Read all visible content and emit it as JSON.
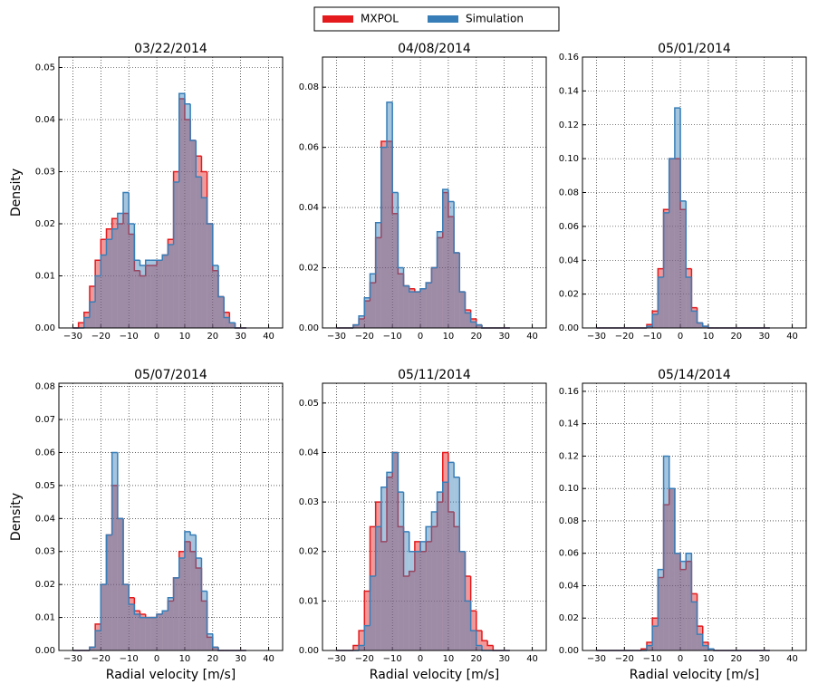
{
  "chart_data": [
    {
      "type": "histogram",
      "title": "03/22/2014",
      "y_label": "Density",
      "bins": [
        -30,
        -28,
        -26,
        -24,
        -22,
        -20,
        -18,
        -16,
        -14,
        -12,
        -10,
        -8,
        -6,
        -4,
        -2,
        0,
        2,
        4,
        6,
        8,
        10,
        12,
        14,
        16,
        18,
        20,
        22,
        24,
        26,
        28,
        30,
        32
      ],
      "series": [
        {
          "name": "MXPOL",
          "color": "#e41a1c",
          "values": [
            0,
            0.001,
            0.003,
            0.008,
            0.013,
            0.017,
            0.019,
            0.021,
            0.02,
            0.022,
            0.018,
            0.011,
            0.01,
            0.012,
            0.012,
            0.013,
            0.014,
            0.017,
            0.03,
            0.044,
            0.04,
            0.036,
            0.033,
            0.03,
            0.02,
            0.011,
            0.006,
            0.003,
            0.001,
            0,
            0
          ]
        },
        {
          "name": "Simulation",
          "color": "#377eb8",
          "values": [
            0,
            0,
            0.002,
            0.005,
            0.01,
            0.014,
            0.017,
            0.019,
            0.022,
            0.026,
            0.02,
            0.013,
            0.012,
            0.013,
            0.013,
            0.013,
            0.014,
            0.016,
            0.028,
            0.045,
            0.043,
            0.036,
            0.029,
            0.025,
            0.02,
            0.012,
            0.006,
            0.002,
            0.001,
            0,
            0
          ]
        }
      ],
      "xlim": [
        -35,
        45
      ],
      "ylim": [
        0,
        0.052
      ],
      "grid": true,
      "xticks": [
        {
          "value": -30,
          "label": "−30"
        },
        {
          "value": -20,
          "label": "−20"
        },
        {
          "value": -10,
          "label": "−10"
        },
        0,
        10,
        20,
        30,
        40
      ],
      "yticks": [
        {
          "value": 0,
          "label": "0.00"
        },
        {
          "value": 0.01,
          "label": "0.01"
        },
        {
          "value": 0.02,
          "label": "0.02"
        },
        {
          "value": 0.03,
          "label": "0.03"
        },
        {
          "value": 0.04,
          "label": "0.04"
        },
        {
          "value": 0.05,
          "label": "0.05"
        }
      ]
    },
    {
      "type": "histogram",
      "title": "04/08/2014",
      "bins": [
        -30,
        -28,
        -26,
        -24,
        -22,
        -20,
        -18,
        -16,
        -14,
        -12,
        -10,
        -8,
        -6,
        -4,
        -2,
        0,
        2,
        4,
        6,
        8,
        10,
        12,
        14,
        16,
        18,
        20,
        22,
        24,
        26,
        28,
        30,
        32
      ],
      "series": [
        {
          "name": "MXPOL",
          "color": "#e41a1c",
          "values": [
            0,
            0,
            0,
            0.001,
            0.003,
            0.009,
            0.015,
            0.03,
            0.062,
            0.062,
            0.038,
            0.018,
            0.014,
            0.013,
            0.012,
            0.013,
            0.015,
            0.02,
            0.03,
            0.045,
            0.037,
            0.025,
            0.012,
            0.006,
            0.003,
            0.001,
            0,
            0,
            0,
            0,
            0
          ]
        },
        {
          "name": "Simulation",
          "color": "#377eb8",
          "values": [
            0,
            0,
            0,
            0.001,
            0.004,
            0.01,
            0.018,
            0.035,
            0.06,
            0.075,
            0.045,
            0.02,
            0.014,
            0.012,
            0.012,
            0.013,
            0.015,
            0.02,
            0.032,
            0.046,
            0.042,
            0.025,
            0.012,
            0.005,
            0.002,
            0.001,
            0,
            0,
            0,
            0,
            0
          ]
        }
      ],
      "xlim": [
        -35,
        45
      ],
      "ylim": [
        0,
        0.09
      ],
      "grid": true,
      "xticks": [
        {
          "value": -30,
          "label": "−30"
        },
        {
          "value": -20,
          "label": "−20"
        },
        {
          "value": -10,
          "label": "−10"
        },
        0,
        10,
        20,
        30,
        40
      ],
      "yticks": [
        {
          "value": 0,
          "label": "0.00"
        },
        {
          "value": 0.02,
          "label": "0.02"
        },
        {
          "value": 0.04,
          "label": "0.04"
        },
        {
          "value": 0.06,
          "label": "0.06"
        },
        {
          "value": 0.08,
          "label": "0.08"
        }
      ]
    },
    {
      "type": "histogram",
      "title": "05/01/2014",
      "bins": [
        -30,
        -28,
        -26,
        -24,
        -22,
        -20,
        -18,
        -16,
        -14,
        -12,
        -10,
        -8,
        -6,
        -4,
        -2,
        0,
        2,
        4,
        6,
        8,
        10,
        12,
        14,
        16,
        18,
        20,
        22,
        24,
        26,
        28,
        30,
        32
      ],
      "series": [
        {
          "name": "MXPOL",
          "color": "#e41a1c",
          "values": [
            0,
            0,
            0,
            0,
            0,
            0,
            0,
            0,
            0,
            0.002,
            0.01,
            0.035,
            0.07,
            0.1,
            0.1,
            0.07,
            0.035,
            0.012,
            0.003,
            0.001,
            0,
            0,
            0,
            0,
            0,
            0,
            0,
            0,
            0,
            0,
            0
          ]
        },
        {
          "name": "Simulation",
          "color": "#377eb8",
          "values": [
            0,
            0,
            0,
            0,
            0,
            0,
            0,
            0,
            0,
            0.001,
            0.008,
            0.03,
            0.068,
            0.1,
            0.13,
            0.075,
            0.03,
            0.01,
            0.003,
            0.001,
            0,
            0,
            0,
            0,
            0,
            0,
            0,
            0,
            0,
            0,
            0
          ]
        }
      ],
      "xlim": [
        -35,
        45
      ],
      "ylim": [
        0,
        0.16
      ],
      "grid": true,
      "xticks": [
        {
          "value": -30,
          "label": "−30"
        },
        {
          "value": -20,
          "label": "−20"
        },
        {
          "value": -10,
          "label": "−10"
        },
        0,
        10,
        20,
        30,
        40
      ],
      "yticks": [
        {
          "value": 0,
          "label": "0.00"
        },
        {
          "value": 0.02,
          "label": "0.02"
        },
        {
          "value": 0.04,
          "label": "0.04"
        },
        {
          "value": 0.06,
          "label": "0.06"
        },
        {
          "value": 0.08,
          "label": "0.08"
        },
        {
          "value": 0.1,
          "label": "0.10"
        },
        {
          "value": 0.12,
          "label": "0.12"
        },
        {
          "value": 0.14,
          "label": "0.14"
        },
        {
          "value": 0.16,
          "label": "0.16"
        }
      ]
    },
    {
      "type": "histogram",
      "title": "05/07/2014",
      "y_label": "Density",
      "x_label": "Radial velocity [m/s]",
      "bins": [
        -30,
        -28,
        -26,
        -24,
        -22,
        -20,
        -18,
        -16,
        -14,
        -12,
        -10,
        -8,
        -6,
        -4,
        -2,
        0,
        2,
        4,
        6,
        8,
        10,
        12,
        14,
        16,
        18,
        20,
        22,
        24,
        26,
        28,
        30,
        32
      ],
      "series": [
        {
          "name": "MXPOL",
          "color": "#e41a1c",
          "values": [
            0,
            0,
            0,
            0.001,
            0.008,
            0.02,
            0.035,
            0.05,
            0.04,
            0.02,
            0.016,
            0.012,
            0.011,
            0.01,
            0.01,
            0.011,
            0.012,
            0.015,
            0.022,
            0.03,
            0.033,
            0.03,
            0.025,
            0.015,
            0.004,
            0.001,
            0,
            0,
            0,
            0,
            0
          ]
        },
        {
          "name": "Simulation",
          "color": "#377eb8",
          "values": [
            0,
            0,
            0,
            0.001,
            0.006,
            0.02,
            0.035,
            0.06,
            0.04,
            0.02,
            0.014,
            0.011,
            0.01,
            0.01,
            0.01,
            0.011,
            0.012,
            0.016,
            0.022,
            0.028,
            0.036,
            0.035,
            0.028,
            0.018,
            0.005,
            0.001,
            0,
            0,
            0,
            0,
            0
          ]
        }
      ],
      "xlim": [
        -35,
        45
      ],
      "ylim": [
        0,
        0.081
      ],
      "grid": true,
      "xticks": [
        {
          "value": -30,
          "label": "−30"
        },
        {
          "value": -20,
          "label": "−20"
        },
        {
          "value": -10,
          "label": "−10"
        },
        0,
        10,
        20,
        30,
        40
      ],
      "yticks": [
        {
          "value": 0,
          "label": "0.00"
        },
        {
          "value": 0.01,
          "label": "0.01"
        },
        {
          "value": 0.02,
          "label": "0.02"
        },
        {
          "value": 0.03,
          "label": "0.03"
        },
        {
          "value": 0.04,
          "label": "0.04"
        },
        {
          "value": 0.05,
          "label": "0.05"
        },
        {
          "value": 0.06,
          "label": "0.06"
        },
        {
          "value": 0.07,
          "label": "0.07"
        },
        {
          "value": 0.08,
          "label": "0.08"
        }
      ]
    },
    {
      "type": "histogram",
      "title": "05/11/2014",
      "x_label": "Radial velocity [m/s]",
      "bins": [
        -30,
        -28,
        -26,
        -24,
        -22,
        -20,
        -18,
        -16,
        -14,
        -12,
        -10,
        -8,
        -6,
        -4,
        -2,
        0,
        2,
        4,
        6,
        8,
        10,
        12,
        14,
        16,
        18,
        20,
        22,
        24,
        26,
        28,
        30,
        32
      ],
      "series": [
        {
          "name": "MXPOL",
          "color": "#e41a1c",
          "values": [
            0,
            0,
            0,
            0.001,
            0.004,
            0.012,
            0.025,
            0.03,
            0.022,
            0.035,
            0.04,
            0.025,
            0.015,
            0.016,
            0.022,
            0.02,
            0.022,
            0.025,
            0.03,
            0.04,
            0.028,
            0.025,
            0.02,
            0.015,
            0.008,
            0.004,
            0.002,
            0.001,
            0,
            0,
            0
          ]
        },
        {
          "name": "Simulation",
          "color": "#377eb8",
          "values": [
            0,
            0,
            0,
            0,
            0.001,
            0.005,
            0.015,
            0.025,
            0.033,
            0.036,
            0.04,
            0.032,
            0.024,
            0.02,
            0.02,
            0.022,
            0.025,
            0.028,
            0.032,
            0.034,
            0.038,
            0.035,
            0.02,
            0.01,
            0.004,
            0.001,
            0,
            0,
            0,
            0,
            0
          ]
        }
      ],
      "xlim": [
        -35,
        45
      ],
      "ylim": [
        0,
        0.054
      ],
      "grid": true,
      "xticks": [
        {
          "value": -30,
          "label": "−30"
        },
        {
          "value": -20,
          "label": "−20"
        },
        {
          "value": -10,
          "label": "−10"
        },
        0,
        10,
        20,
        30,
        40
      ],
      "yticks": [
        {
          "value": 0,
          "label": "0.00"
        },
        {
          "value": 0.01,
          "label": "0.01"
        },
        {
          "value": 0.02,
          "label": "0.02"
        },
        {
          "value": 0.03,
          "label": "0.03"
        },
        {
          "value": 0.04,
          "label": "0.04"
        },
        {
          "value": 0.05,
          "label": "0.05"
        }
      ]
    },
    {
      "type": "histogram",
      "title": "05/14/2014",
      "x_label": "Radial velocity [m/s]",
      "bins": [
        -30,
        -28,
        -26,
        -24,
        -22,
        -20,
        -18,
        -16,
        -14,
        -12,
        -10,
        -8,
        -6,
        -4,
        -2,
        0,
        2,
        4,
        6,
        8,
        10,
        12,
        14,
        16,
        18,
        20,
        22,
        24,
        26,
        28,
        30,
        32
      ],
      "series": [
        {
          "name": "MXPOL",
          "color": "#e41a1c",
          "values": [
            0,
            0,
            0,
            0,
            0,
            0,
            0,
            0,
            0.001,
            0.005,
            0.02,
            0.045,
            0.09,
            0.1,
            0.06,
            0.05,
            0.055,
            0.035,
            0.015,
            0.005,
            0.001,
            0,
            0,
            0,
            0,
            0,
            0,
            0,
            0,
            0,
            0
          ]
        },
        {
          "name": "Simulation",
          "color": "#377eb8",
          "values": [
            0,
            0,
            0,
            0,
            0,
            0,
            0,
            0,
            0,
            0.003,
            0.015,
            0.05,
            0.12,
            0.1,
            0.06,
            0.055,
            0.06,
            0.03,
            0.01,
            0.003,
            0.001,
            0,
            0,
            0,
            0,
            0,
            0,
            0,
            0,
            0,
            0
          ]
        }
      ],
      "xlim": [
        -35,
        45
      ],
      "ylim": [
        0,
        0.165
      ],
      "grid": true,
      "xticks": [
        {
          "value": -30,
          "label": "−30"
        },
        {
          "value": -20,
          "label": "−20"
        },
        {
          "value": -10,
          "label": "−10"
        },
        0,
        10,
        20,
        30,
        40
      ],
      "yticks": [
        {
          "value": 0,
          "label": "0.00"
        },
        {
          "value": 0.02,
          "label": "0.02"
        },
        {
          "value": 0.04,
          "label": "0.04"
        },
        {
          "value": 0.06,
          "label": "0.06"
        },
        {
          "value": 0.08,
          "label": "0.08"
        },
        {
          "value": 0.1,
          "label": "0.10"
        },
        {
          "value": 0.12,
          "label": "0.12"
        },
        {
          "value": 0.14,
          "label": "0.14"
        },
        {
          "value": 0.16,
          "label": "0.16"
        }
      ]
    }
  ]
}
